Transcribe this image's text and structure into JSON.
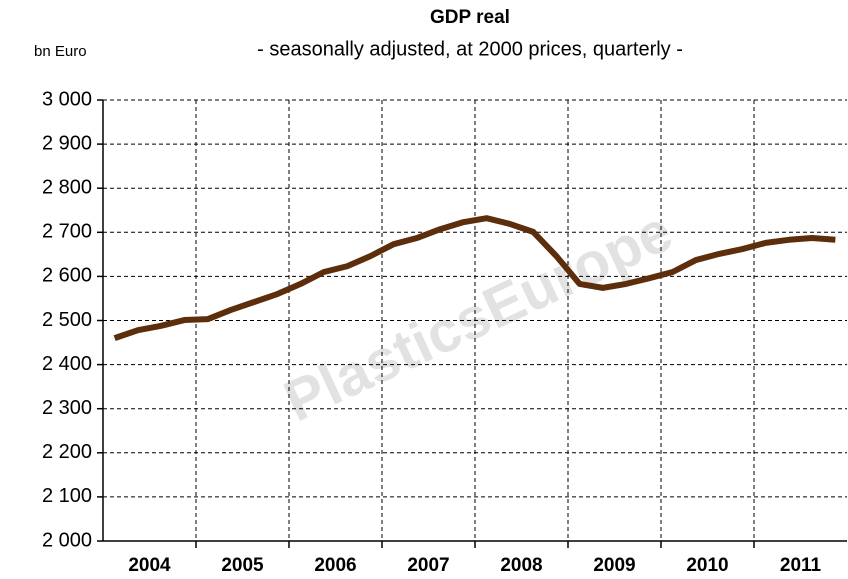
{
  "chart_data": {
    "type": "line",
    "title": "GDP real",
    "subtitle": "- seasonally adjusted, at 2000 prices, quarterly -",
    "y_axis_label": "bn Euro",
    "watermark": "PlasticsEurope",
    "x": [
      2004.125,
      2004.375,
      2004.625,
      2004.875,
      2005.125,
      2005.375,
      2005.625,
      2005.875,
      2006.125,
      2006.375,
      2006.625,
      2006.875,
      2007.125,
      2007.375,
      2007.625,
      2007.875,
      2008.125,
      2008.375,
      2008.625,
      2008.875,
      2009.125,
      2009.375,
      2009.625,
      2009.875,
      2010.125,
      2010.375,
      2010.625,
      2010.875,
      2011.125,
      2011.375,
      2011.625,
      2011.875
    ],
    "series": [
      {
        "name": "GDP real",
        "color": "#5c2e0b",
        "values": [
          2460,
          2478,
          2488,
          2501,
          2503,
          2524,
          2542,
          2560,
          2583,
          2610,
          2623,
          2646,
          2673,
          2687,
          2707,
          2723,
          2732,
          2719,
          2701,
          2646,
          2583,
          2574,
          2583,
          2596,
          2610,
          2637,
          2651,
          2662,
          2676,
          2683,
          2687,
          2683
        ]
      }
    ],
    "xlim": [
      2004,
      2012
    ],
    "xticks": [
      {
        "value": 2004.5,
        "label": "2004"
      },
      {
        "value": 2005.5,
        "label": "2005"
      },
      {
        "value": 2006.5,
        "label": "2006"
      },
      {
        "value": 2007.5,
        "label": "2007"
      },
      {
        "value": 2008.5,
        "label": "2008"
      },
      {
        "value": 2009.5,
        "label": "2009"
      },
      {
        "value": 2010.5,
        "label": "2010"
      },
      {
        "value": 2011.5,
        "label": "2011"
      }
    ],
    "xgrid": [
      2005,
      2006,
      2007,
      2008,
      2009,
      2010,
      2011
    ],
    "ylim": [
      2000,
      3000
    ],
    "yticks": [
      {
        "value": 2000,
        "label": "2 000"
      },
      {
        "value": 2100,
        "label": "2 100"
      },
      {
        "value": 2200,
        "label": "2 200"
      },
      {
        "value": 2300,
        "label": "2 300"
      },
      {
        "value": 2400,
        "label": "2 400"
      },
      {
        "value": 2500,
        "label": "2 500"
      },
      {
        "value": 2600,
        "label": "2 600"
      },
      {
        "value": 2700,
        "label": "2 700"
      },
      {
        "value": 2800,
        "label": "2 800"
      },
      {
        "value": 2900,
        "label": "2 900"
      },
      {
        "value": 3000,
        "label": "3 000"
      }
    ],
    "grid": true
  }
}
